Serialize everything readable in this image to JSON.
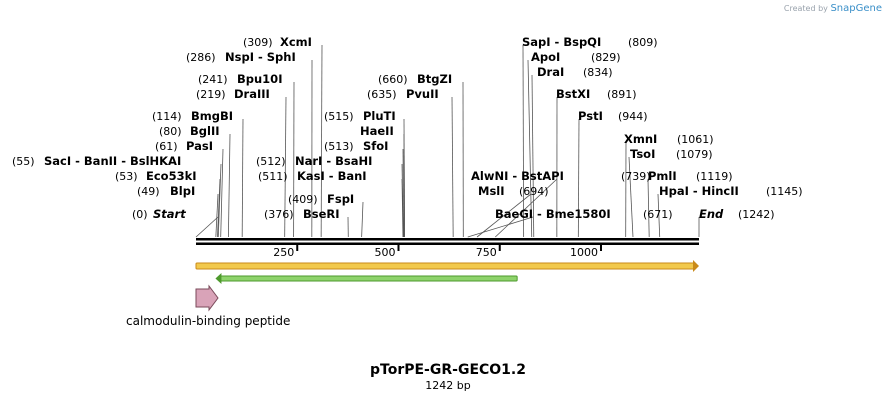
{
  "credit": {
    "prefix": "Created by",
    "brand": "SnapGene"
  },
  "plasmid": {
    "name": "pTorPE-GR-GECO1.2",
    "length_label": "1242 bp"
  },
  "sequence": {
    "length": 1242,
    "ticks": [
      {
        "pos": 250,
        "label": "250"
      },
      {
        "pos": 500,
        "label": "500"
      },
      {
        "pos": 750,
        "label": "750"
      },
      {
        "pos": 1000,
        "label": "1000"
      }
    ]
  },
  "sites": [
    {
      "text": "Start",
      "num": "(0)",
      "pos": 0,
      "num_side": "left",
      "italic": true
    },
    {
      "text": "BlpI",
      "num": "(49)",
      "pos": 49,
      "num_side": "left"
    },
    {
      "text": "Eco53kI",
      "num": "(53)",
      "pos": 53,
      "num_side": "left"
    },
    {
      "text": "SacI  -  BanII  -  BslHKAI",
      "num": "(55)",
      "pos": 55,
      "num_side": "left"
    },
    {
      "text": "PasI",
      "num": "(61)",
      "pos": 61,
      "num_side": "left"
    },
    {
      "text": "BglII",
      "num": "(80)",
      "pos": 80,
      "num_side": "left"
    },
    {
      "text": "BmgBI",
      "num": "(114)",
      "pos": 114,
      "num_side": "left"
    },
    {
      "text": "DraIII",
      "num": "(219)",
      "pos": 219,
      "num_side": "left"
    },
    {
      "text": "Bpu10I",
      "num": "(241)",
      "pos": 241,
      "num_side": "left"
    },
    {
      "text": "NspI  -  SphI",
      "num": "(286)",
      "pos": 286,
      "num_side": "left"
    },
    {
      "text": "XcmI",
      "num": "(309)",
      "pos": 309,
      "num_side": "left"
    },
    {
      "text": "BseRI",
      "num": "(376)",
      "pos": 376,
      "num_side": "left"
    },
    {
      "text": "FspI",
      "num": "(409)",
      "pos": 409,
      "num_side": "left"
    },
    {
      "text": "KasI  -  BanI",
      "num": "(511)",
      "pos": 511,
      "num_side": "left"
    },
    {
      "text": "NarI  -  BsaHI",
      "num": "(512)",
      "pos": 512,
      "num_side": "left"
    },
    {
      "text": "SfoI",
      "num": "(513)",
      "pos": 513,
      "num_side": "left"
    },
    {
      "text": "HaeII",
      "num": "",
      "pos": 515,
      "num_side": "left"
    },
    {
      "text": "PluTI",
      "num": "(515)",
      "pos": 515,
      "num_side": "left"
    },
    {
      "text": "PvuII",
      "num": "(635)",
      "pos": 635,
      "num_side": "left"
    },
    {
      "text": "BtgZI",
      "num": "(660)",
      "pos": 660,
      "num_side": "left"
    },
    {
      "text": "BaeGI  -  Bme1580I",
      "num": "(671)",
      "pos": 671,
      "num_side": "right"
    },
    {
      "text": "MslI",
      "num": "(694)",
      "pos": 694,
      "num_side": "right"
    },
    {
      "text": "AlwNI  -  BstAPI",
      "num": "(739)",
      "pos": 739,
      "num_side": "right"
    },
    {
      "text": "SapI  -  BspQI",
      "num": "(809)",
      "pos": 809,
      "num_side": "right"
    },
    {
      "text": "ApoI",
      "num": "(829)",
      "pos": 829,
      "num_side": "right"
    },
    {
      "text": "DraI",
      "num": "(834)",
      "pos": 834,
      "num_side": "right"
    },
    {
      "text": "BstXI",
      "num": "(891)",
      "pos": 891,
      "num_side": "right"
    },
    {
      "text": "PstI",
      "num": "(944)",
      "pos": 944,
      "num_side": "right"
    },
    {
      "text": "XmnI",
      "num": "(1061)",
      "pos": 1061,
      "num_side": "right"
    },
    {
      "text": "TsoI",
      "num": "(1079)",
      "pos": 1079,
      "num_side": "right"
    },
    {
      "text": "PmlI",
      "num": "(1119)",
      "pos": 1119,
      "num_side": "right"
    },
    {
      "text": "HpaI  -  HincII",
      "num": "(1145)",
      "pos": 1145,
      "num_side": "right"
    },
    {
      "text": "End",
      "num": "(1242)",
      "pos": 1242,
      "num_side": "right",
      "italic": true
    }
  ],
  "features": {
    "orange_bar": {
      "start": 0,
      "end": 1242,
      "color": "#f2c94c",
      "border": "#c98a1a"
    },
    "green_bar": {
      "start": 48,
      "end": 793,
      "color": "#8ed36b",
      "border": "#4e9a2d"
    },
    "peptide": {
      "label": "calmodulin-binding peptide",
      "color": "#d9a3b8",
      "border": "#7a4a5a"
    }
  }
}
